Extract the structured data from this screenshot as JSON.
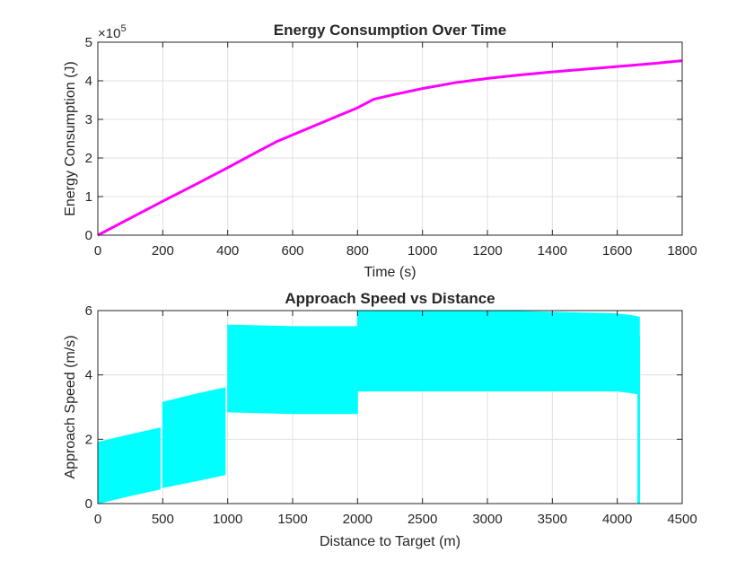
{
  "chart_data": [
    {
      "type": "line",
      "title": "Energy Consumption Over Time",
      "xlabel": "Time (s)",
      "ylabel": "Energy Consumption (J)",
      "exponent_label": "×10",
      "exponent_power": "5",
      "xlim": [
        0,
        1800
      ],
      "ylim": [
        0,
        5
      ],
      "y_multiplier": 100000,
      "xticks": [
        "0",
        "200",
        "400",
        "600",
        "800",
        "1000",
        "1200",
        "1400",
        "1600",
        "1800"
      ],
      "yticks": [
        "0",
        "1",
        "2",
        "3",
        "4",
        "5"
      ],
      "grid": true,
      "series": [
        {
          "color": "#FF00FF",
          "x": [
            0,
            100,
            200,
            300,
            400,
            500,
            550,
            600,
            700,
            800,
            850,
            900,
            1000,
            1100,
            1200,
            1300,
            1400,
            1500,
            1600,
            1700,
            1800
          ],
          "y": [
            0,
            0.44,
            0.88,
            1.31,
            1.75,
            2.2,
            2.42,
            2.6,
            2.95,
            3.3,
            3.52,
            3.62,
            3.8,
            3.95,
            4.06,
            4.15,
            4.23,
            4.3,
            4.37,
            4.44,
            4.52
          ]
        }
      ]
    },
    {
      "type": "area",
      "title": "Approach Speed vs Distance",
      "xlabel": "Distance to Target (m)",
      "ylabel": "Approach Speed (m/s)",
      "xlim": [
        0,
        4500
      ],
      "ylim": [
        0,
        6
      ],
      "xticks": [
        "0",
        "500",
        "1000",
        "1500",
        "2000",
        "2500",
        "3000",
        "3500",
        "4000",
        "4500"
      ],
      "yticks": [
        "0",
        "2",
        "4",
        "6"
      ],
      "grid": true,
      "series": [
        {
          "color": "#00FFFF",
          "segments": [
            {
              "x": [
                0,
                200,
                480
              ],
              "upper": [
                1.9,
                2.1,
                2.35
              ],
              "lower": [
                0.0,
                0.2,
                0.45
              ]
            },
            {
              "x": [
                500,
                750,
                980
              ],
              "upper": [
                3.15,
                3.4,
                3.6
              ],
              "lower": [
                0.5,
                0.7,
                0.9
              ]
            },
            {
              "x": [
                1000,
                1500,
                2000
              ],
              "upper": [
                5.55,
                5.5,
                5.5
              ],
              "lower": [
                2.85,
                2.8,
                2.8
              ]
            },
            {
              "x": [
                2000,
                3000,
                4000,
                4100,
                4170
              ],
              "upper": [
                6.0,
                6.0,
                5.9,
                5.85,
                5.8
              ],
              "lower": [
                3.5,
                3.5,
                3.5,
                3.45,
                3.4
              ]
            }
          ],
          "drop": {
            "x": 4165,
            "from": 5.2,
            "to": 0.0
          }
        }
      ]
    }
  ]
}
